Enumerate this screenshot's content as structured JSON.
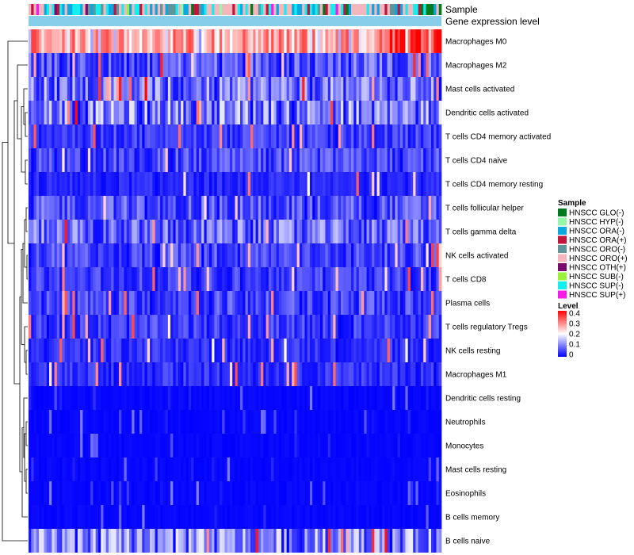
{
  "chart_data": {
    "type": "heatmap",
    "title": "",
    "annotation_tracks": [
      "Sample",
      "Gene expression level"
    ],
    "rows": [
      "Macrophages M0",
      "Macrophages M2",
      "Mast cells activated",
      "Dendritic cells activated",
      "T cells CD4 memory activated",
      "T cells CD4 naive",
      "T cells CD4 memory resting",
      "T cells follicular helper",
      "T cells gamma delta",
      "NK cells activated",
      "T cells CD8",
      "Plasma cells",
      "T cells regulatory  Tregs",
      "NK cells resting",
      "Macrophages M1",
      "Dendritic cells resting",
      "Neutrophils",
      "Monocytes",
      "Mast cells resting",
      "Eosinophils",
      "B cells memory",
      "B cells naive"
    ],
    "row_typical_level": [
      0.3,
      0.08,
      0.1,
      0.11,
      0.05,
      0.06,
      0.03,
      0.07,
      0.09,
      0.06,
      0.05,
      0.06,
      0.05,
      0.04,
      0.04,
      0.01,
      0.01,
      0.01,
      0.01,
      0.01,
      0.01,
      0.11
    ],
    "num_samples": 160,
    "sample_legend": {
      "title": "Sample",
      "items": [
        {
          "label": "HNSCC GLO(-)",
          "color": "#007A1F"
        },
        {
          "label": "HNSCC HYP(-)",
          "color": "#95F7A9"
        },
        {
          "label": "HNSCC ORA(-)",
          "color": "#0AA8E0"
        },
        {
          "label": "HNSCC ORA(+)",
          "color": "#C3143C"
        },
        {
          "label": "HNSCC ORO(-)",
          "color": "#5F969C"
        },
        {
          "label": "HNSCC ORO(+)",
          "color": "#F6B6BE"
        },
        {
          "label": "HNSCC OTH(+)",
          "color": "#7B0A6E"
        },
        {
          "label": "HNSCC SUB(-)",
          "color": "#9BF13A"
        },
        {
          "label": "HNSCC SUP(-)",
          "color": "#12EFF0"
        },
        {
          "label": "HNSCC SUP(+)",
          "color": "#F31CE8"
        }
      ]
    },
    "level_legend": {
      "title": "Level",
      "range": [
        0,
        0.4
      ],
      "ticks": [
        "0.4",
        "0.3",
        "0.2",
        "0.1",
        "0"
      ],
      "colors": {
        "low": "#0000FF",
        "mid": "#FFFFFF",
        "high": "#FF0000"
      }
    },
    "gene_expression_color": "#87CEEB"
  }
}
